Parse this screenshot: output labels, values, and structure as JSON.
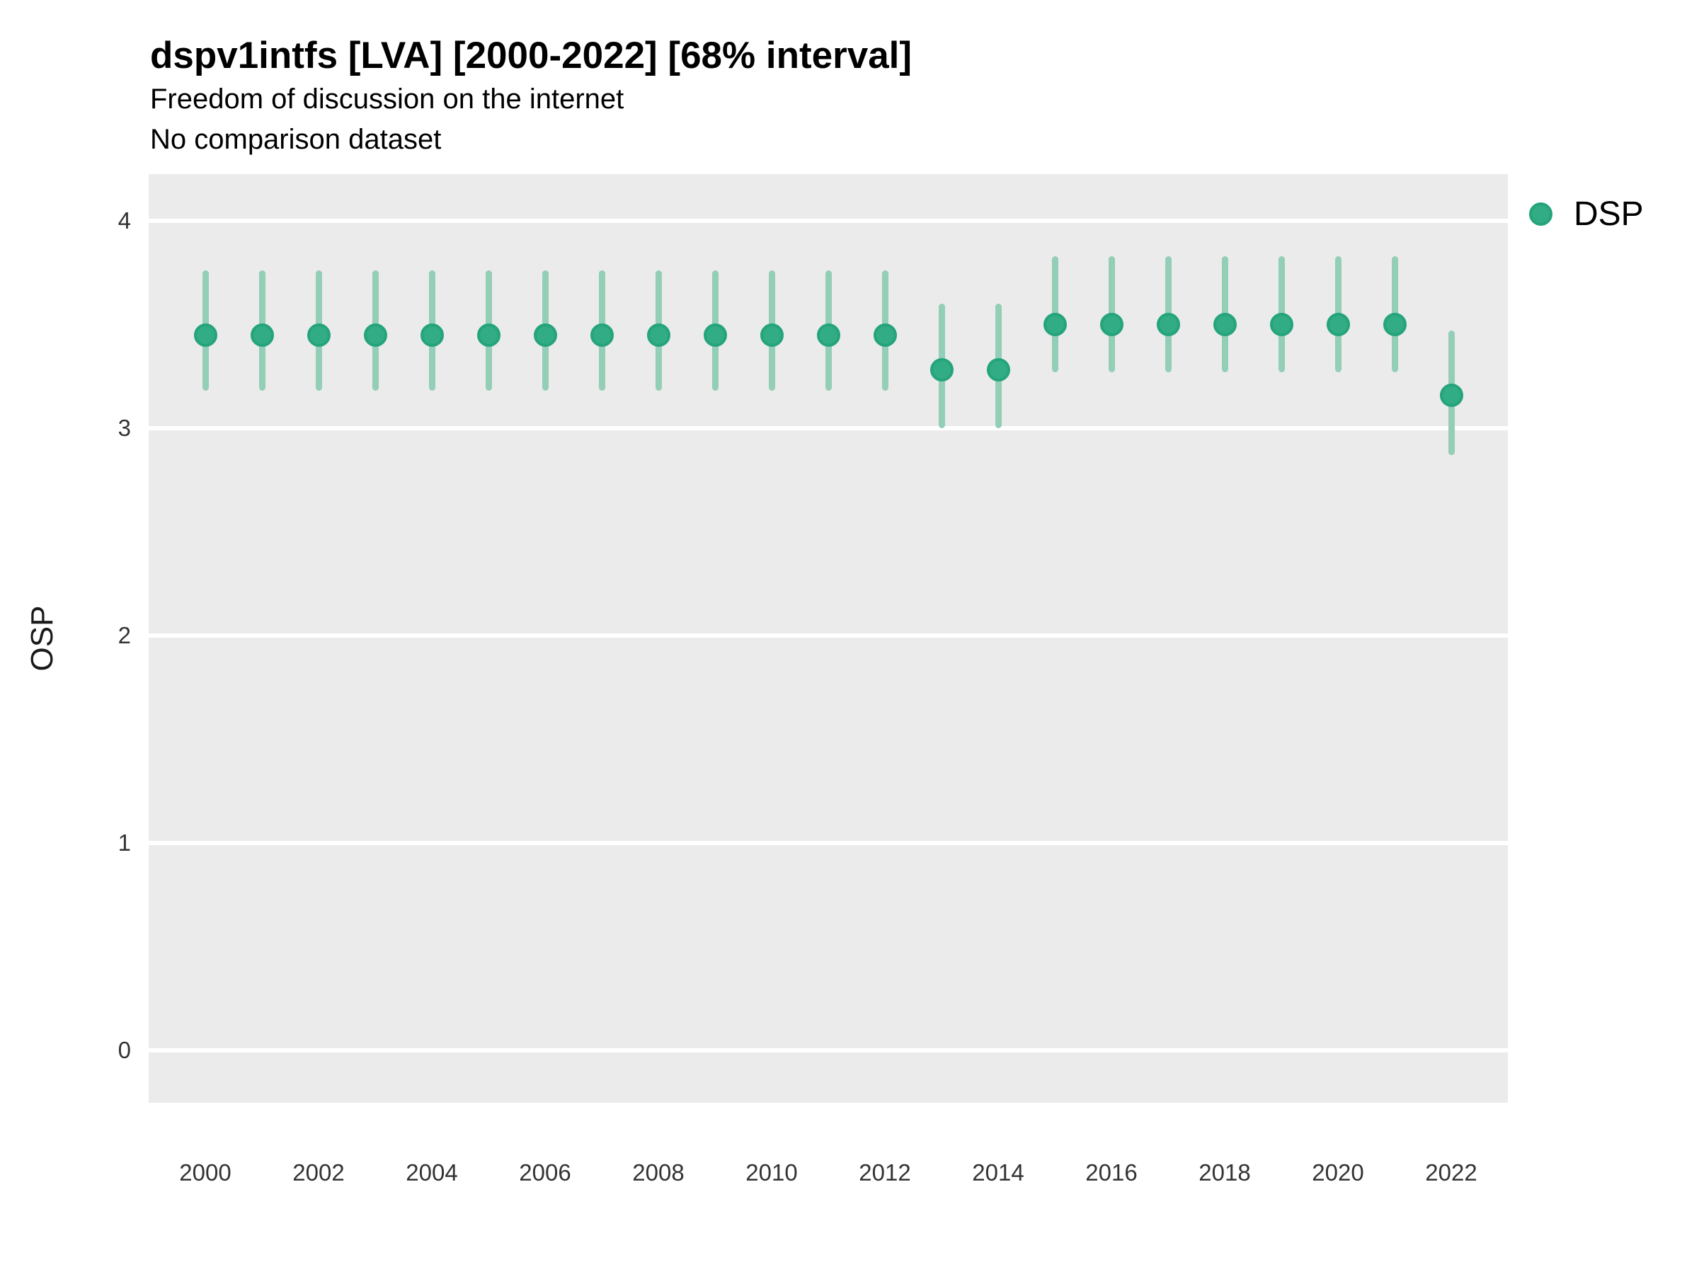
{
  "header": {
    "title": "dspv1intfs [LVA] [2000-2022] [68% interval]",
    "subtitle": "Freedom of discussion on the internet",
    "comparison_note": "No comparison dataset"
  },
  "legend": {
    "label": "DSP",
    "marker_icon": "circle-icon",
    "position": "right-top"
  },
  "colors": {
    "panel_background": "#EBEBEB",
    "gridline": "#FFFFFF",
    "interval_line": "#93CEB6",
    "point_fill": "#31AC85",
    "point_stroke": "#25A47C",
    "text": "#000000",
    "tick_text": "#333333"
  },
  "y_axis": {
    "label": "OSP",
    "ticks": [
      4,
      3,
      2,
      1,
      0
    ]
  },
  "x_axis": {
    "ticks": [
      2000,
      2002,
      2004,
      2006,
      2008,
      2010,
      2012,
      2014,
      2016,
      2018,
      2020,
      2022
    ]
  },
  "chart_data": {
    "type": "scatter",
    "title": "dspv1intfs [LVA] [2000-2022] [68% interval]",
    "subtitle": "Freedom of discussion on the internet",
    "note": "No comparison dataset",
    "interval": "68%",
    "xlabel": "",
    "ylabel": "OSP",
    "xlim": [
      1999,
      2023
    ],
    "ylim": [
      -0.25,
      4.23
    ],
    "grid": "horizontal-major-only",
    "legend_position": "right",
    "series": [
      {
        "name": "DSP",
        "points": [
          {
            "year": 2000,
            "value": 3.45,
            "lo": 3.18,
            "hi": 3.76
          },
          {
            "year": 2001,
            "value": 3.45,
            "lo": 3.18,
            "hi": 3.76
          },
          {
            "year": 2002,
            "value": 3.45,
            "lo": 3.18,
            "hi": 3.76
          },
          {
            "year": 2003,
            "value": 3.45,
            "lo": 3.18,
            "hi": 3.76
          },
          {
            "year": 2004,
            "value": 3.45,
            "lo": 3.18,
            "hi": 3.76
          },
          {
            "year": 2005,
            "value": 3.45,
            "lo": 3.18,
            "hi": 3.76
          },
          {
            "year": 2006,
            "value": 3.45,
            "lo": 3.18,
            "hi": 3.76
          },
          {
            "year": 2007,
            "value": 3.45,
            "lo": 3.18,
            "hi": 3.76
          },
          {
            "year": 2008,
            "value": 3.45,
            "lo": 3.18,
            "hi": 3.76
          },
          {
            "year": 2009,
            "value": 3.45,
            "lo": 3.18,
            "hi": 3.76
          },
          {
            "year": 2010,
            "value": 3.45,
            "lo": 3.18,
            "hi": 3.76
          },
          {
            "year": 2011,
            "value": 3.45,
            "lo": 3.18,
            "hi": 3.76
          },
          {
            "year": 2012,
            "value": 3.45,
            "lo": 3.18,
            "hi": 3.76
          },
          {
            "year": 2013,
            "value": 3.28,
            "lo": 3.0,
            "hi": 3.6
          },
          {
            "year": 2014,
            "value": 3.28,
            "lo": 3.0,
            "hi": 3.6
          },
          {
            "year": 2015,
            "value": 3.5,
            "lo": 3.27,
            "hi": 3.83
          },
          {
            "year": 2016,
            "value": 3.5,
            "lo": 3.27,
            "hi": 3.83
          },
          {
            "year": 2017,
            "value": 3.5,
            "lo": 3.27,
            "hi": 3.83
          },
          {
            "year": 2018,
            "value": 3.5,
            "lo": 3.27,
            "hi": 3.83
          },
          {
            "year": 2019,
            "value": 3.5,
            "lo": 3.27,
            "hi": 3.83
          },
          {
            "year": 2020,
            "value": 3.5,
            "lo": 3.27,
            "hi": 3.83
          },
          {
            "year": 2021,
            "value": 3.5,
            "lo": 3.27,
            "hi": 3.83
          },
          {
            "year": 2022,
            "value": 3.16,
            "lo": 2.87,
            "hi": 3.47
          }
        ]
      }
    ]
  }
}
